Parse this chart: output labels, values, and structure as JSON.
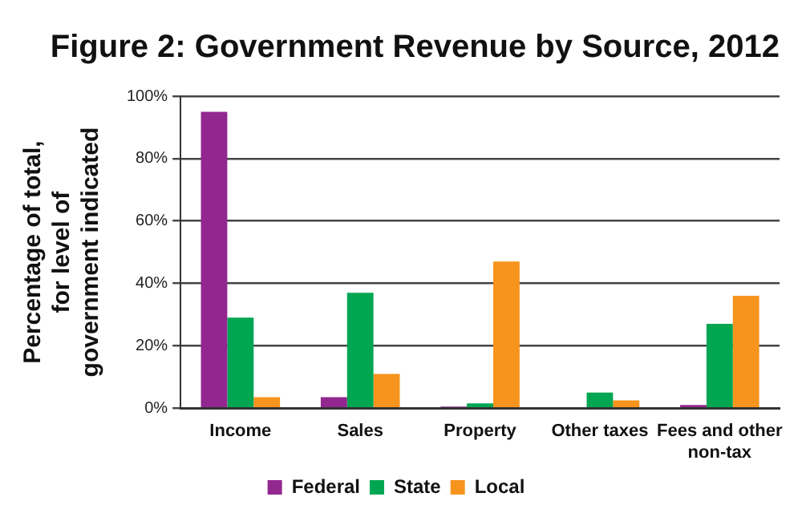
{
  "chart_data": {
    "type": "bar",
    "title": "Figure 2: Government Revenue by Source, 2012",
    "ylabel": "Percentage of total, for level of government indicated",
    "categories": [
      "Income",
      "Sales",
      "Property",
      "Other taxes",
      "Fees and other non-tax"
    ],
    "series": [
      {
        "name": "Federal",
        "color": "#92278f",
        "values": [
          95,
          3.5,
          0.5,
          0,
          1
        ]
      },
      {
        "name": "State",
        "color": "#00a651",
        "values": [
          29,
          37,
          1.5,
          5,
          27
        ]
      },
      {
        "name": "Local",
        "color": "#f7941d",
        "values": [
          3.5,
          11,
          47,
          2.5,
          36
        ]
      }
    ],
    "ylim": [
      0,
      100
    ],
    "yticks": [
      {
        "value": 0,
        "label": "0%"
      },
      {
        "value": 20,
        "label": "20%"
      },
      {
        "value": 40,
        "label": "40%"
      },
      {
        "value": 60,
        "label": "60%"
      },
      {
        "value": 80,
        "label": "80%"
      },
      {
        "value": 100,
        "label": "100%"
      }
    ],
    "grid": "y",
    "legend": "bottom"
  }
}
